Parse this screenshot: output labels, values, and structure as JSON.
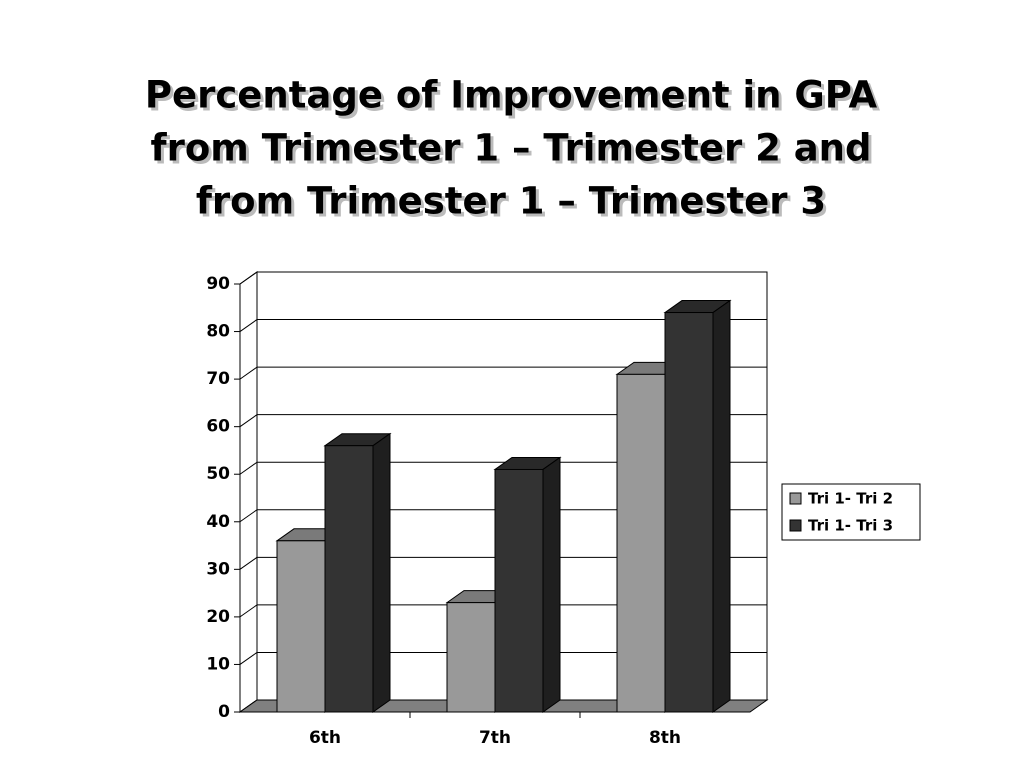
{
  "chart_data": {
    "type": "bar3d",
    "title": [
      "Percentage of Improvement in GPA",
      "from Trimester 1 – Trimester 2 and",
      "from Trimester 1 – Trimester 3"
    ],
    "categories": [
      "6th",
      "7th",
      "8th"
    ],
    "series": [
      {
        "name": "Tri 1- Tri 2",
        "color": "#999999",
        "values": [
          36,
          23,
          71
        ]
      },
      {
        "name": "Tri 1- Tri 3",
        "color": "#333333",
        "values": [
          56,
          51,
          84
        ]
      }
    ],
    "ylim": [
      0,
      90
    ],
    "yticks": [
      0,
      10,
      20,
      30,
      40,
      50,
      60,
      70,
      80,
      90
    ],
    "grid": true,
    "legend": "right"
  }
}
